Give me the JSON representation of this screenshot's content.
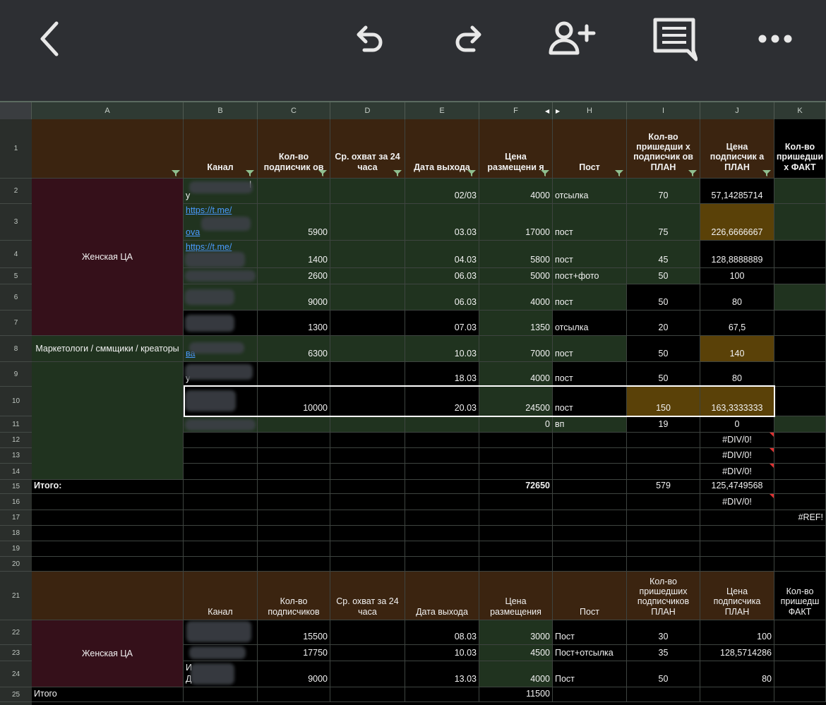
{
  "toolbar": {
    "icons": [
      "back-icon",
      "undo-icon",
      "redo-icon",
      "add-person-icon",
      "comment-icon",
      "more-icon"
    ]
  },
  "columns": [
    "A",
    "B",
    "C",
    "D",
    "E",
    "F",
    "H",
    "I",
    "J",
    "K"
  ],
  "rows": [
    "1",
    "2",
    "3",
    "4",
    "5",
    "6",
    "7",
    "8",
    "9",
    "10",
    "11",
    "12",
    "13",
    "14",
    "15",
    "16",
    "17",
    "18",
    "19",
    "20",
    "21",
    "22",
    "23",
    "24",
    "25"
  ],
  "header1": {
    "channel": "Канал",
    "subs": "Кол-во подписчик ов",
    "reach": "Ср. охват за 24 часа",
    "date": "Дата выхода",
    "price": "Цена размещени я",
    "post": "Пост",
    "plan_subs": "Кол-во пришедши х подписчик ов ПЛАН",
    "plan_price": "Цена подписчик а ПЛАН",
    "fact_subs": "Кол-во пришедши х ФАКТ"
  },
  "groups": {
    "women": "Женская ЦА",
    "marketers": "Маркетологи / сммщики / креаторы"
  },
  "table1": [
    {
      "channel": "y",
      "channel_top": "l",
      "subs": "",
      "date": "02/03",
      "price": "4000",
      "post": "отсылка",
      "plan": "70",
      "pprice": "57,14285714"
    },
    {
      "channel": "ova",
      "link": "https://t.me/",
      "subs": "5900",
      "date": "03.03",
      "price": "17000",
      "post": "пост",
      "plan": "75",
      "pprice": "226,6666667"
    },
    {
      "channel": "",
      "link": "https://t.me/",
      "subs": "1400",
      "date": "04.03",
      "price": "5800",
      "post": "пост",
      "plan": "45",
      "pprice": "128,8888889"
    },
    {
      "channel": "",
      "subs": "2600",
      "date": "06.03",
      "price": "5000",
      "post": "пост+фото",
      "plan": "50",
      "pprice": "100"
    },
    {
      "channel": "",
      "subs": "9000",
      "date": "06.03",
      "price": "4000",
      "post": "пост",
      "plan": "50",
      "pprice": "80"
    },
    {
      "channel": "",
      "subs": "1300",
      "date": "07.03",
      "price": "1350",
      "post": "отсылка",
      "plan": "20",
      "pprice": "67,5"
    },
    {
      "channel": "ва",
      "subs": "6300",
      "date": "10.03",
      "price": "7000",
      "post": "пост",
      "plan": "50",
      "pprice": "140"
    },
    {
      "channel": "у",
      "subs": "",
      "date": "18.03",
      "price": "4000",
      "post": "пост",
      "plan": "50",
      "pprice": "80"
    },
    {
      "channel": "",
      "subs": "10000",
      "date": "20.03",
      "price": "24500",
      "post": "пост",
      "plan": "150",
      "pprice": "163,3333333"
    },
    {
      "channel": "",
      "subs": "",
      "date": "",
      "price": "0",
      "post": "вп",
      "plan": "19",
      "pprice": "0"
    }
  ],
  "div_errors": [
    "#DIV/0!",
    "#DIV/0!",
    "#DIV/0!"
  ],
  "total1": {
    "label": "Итого:",
    "price": "72650",
    "plan": "579",
    "pprice": "125,4749568"
  },
  "row16": {
    "pprice": "#DIV/0!"
  },
  "row17": {
    "ref": "#REF!"
  },
  "header2": {
    "channel": "Канал",
    "subs": "Кол-во подписчиков",
    "reach": "Ср. охват за 24 часа",
    "date": "Дата выхода",
    "price": "Цена размещения",
    "post": "Пост",
    "plan_subs": "Кол-во пришедших подписчиков ПЛАН",
    "plan_price": "Цена подписчика ПЛАН",
    "fact_subs": "Кол-во пришедш ФАКТ"
  },
  "table2": [
    {
      "channel": "",
      "subs": "15500",
      "date": "08.03",
      "price": "3000",
      "post": "Пост",
      "plan": "30",
      "pprice": "100"
    },
    {
      "channel": "",
      "subs": "17750",
      "date": "10.03",
      "price": "4500",
      "post": "Пост+отсылка",
      "plan": "35",
      "pprice": "128,5714286"
    },
    {
      "channel": "Д",
      "channel_top": "И",
      "subs": "9000",
      "date": "13.03",
      "price": "4000",
      "post": "Пост",
      "plan": "50",
      "pprice": "80"
    }
  ],
  "total2": {
    "label": "Итого",
    "price": "11500"
  },
  "colors": {
    "toolbar": "#2d2f33",
    "header_brown": "#3b2410",
    "cell_green": "#20331f",
    "group_maroon": "#35101a",
    "highlight_olive": "#5a4108",
    "link_blue": "#4a9bff"
  }
}
